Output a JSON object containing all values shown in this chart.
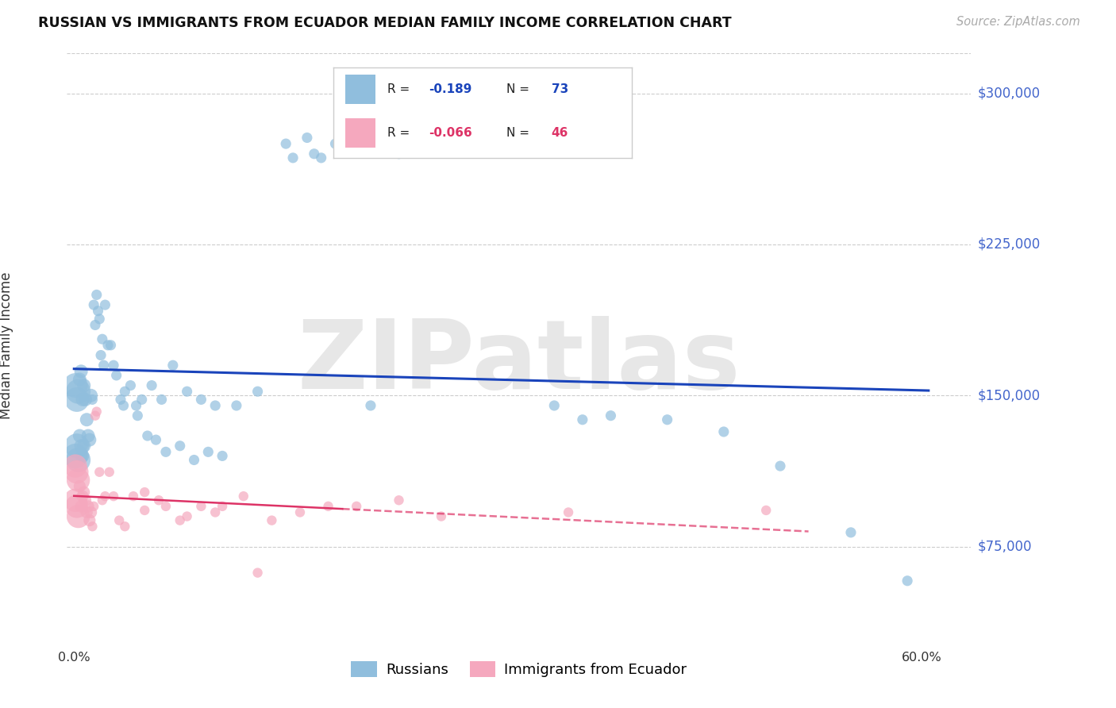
{
  "title": "RUSSIAN VS IMMIGRANTS FROM ECUADOR MEDIAN FAMILY INCOME CORRELATION CHART",
  "source": "Source: ZipAtlas.com",
  "ylabel": "Median Family Income",
  "yticks": [
    75000,
    150000,
    225000,
    300000
  ],
  "ytick_labels": [
    "$75,000",
    "$150,000",
    "$225,000",
    "$300,000"
  ],
  "ylim": [
    30000,
    320000
  ],
  "xlim_min": -0.005,
  "xlim_max": 0.635,
  "blue_R": "-0.189",
  "blue_N": "73",
  "pink_R": "-0.066",
  "pink_N": "46",
  "blue_color": "#90bedd",
  "pink_color": "#f5a8be",
  "blue_line_color": "#1a44bb",
  "pink_line_color": "#dd3366",
  "watermark": "ZIPatlas",
  "watermark_color": "#d8d8d8",
  "background_color": "#ffffff",
  "grid_color": "#cccccc",
  "tick_label_color": "#4466cc",
  "title_color": "#111111",
  "source_color": "#aaaaaa",
  "blue_scatter_x": [
    0.001,
    0.001,
    0.002,
    0.002,
    0.003,
    0.003,
    0.004,
    0.004,
    0.005,
    0.005,
    0.006,
    0.006,
    0.007,
    0.007,
    0.008,
    0.009,
    0.01,
    0.011,
    0.012,
    0.013,
    0.014,
    0.015,
    0.016,
    0.017,
    0.018,
    0.019,
    0.02,
    0.021,
    0.022,
    0.024,
    0.026,
    0.028,
    0.03,
    0.033,
    0.036,
    0.04,
    0.044,
    0.048,
    0.055,
    0.062,
    0.07,
    0.08,
    0.09,
    0.1,
    0.115,
    0.13,
    0.15,
    0.17,
    0.19,
    0.21,
    0.155,
    0.165,
    0.175,
    0.185,
    0.34,
    0.36,
    0.38,
    0.42,
    0.46,
    0.5,
    0.21,
    0.23,
    0.065,
    0.075,
    0.085,
    0.095,
    0.105,
    0.55,
    0.59,
    0.035,
    0.045,
    0.052,
    0.058
  ],
  "blue_scatter_y": [
    155000,
    120000,
    148000,
    125000,
    152000,
    118000,
    158000,
    130000,
    162000,
    125000,
    148000,
    120000,
    155000,
    125000,
    148000,
    138000,
    130000,
    128000,
    150000,
    148000,
    195000,
    185000,
    200000,
    192000,
    188000,
    170000,
    178000,
    165000,
    195000,
    175000,
    175000,
    165000,
    160000,
    148000,
    152000,
    155000,
    145000,
    148000,
    155000,
    148000,
    165000,
    152000,
    148000,
    145000,
    145000,
    152000,
    275000,
    270000,
    280000,
    275000,
    268000,
    278000,
    268000,
    275000,
    145000,
    138000,
    140000,
    138000,
    132000,
    115000,
    145000,
    270000,
    122000,
    125000,
    118000,
    122000,
    120000,
    82000,
    58000,
    145000,
    140000,
    130000,
    128000
  ],
  "pink_scatter_x": [
    0.001,
    0.001,
    0.002,
    0.002,
    0.003,
    0.003,
    0.004,
    0.005,
    0.006,
    0.007,
    0.008,
    0.009,
    0.01,
    0.011,
    0.012,
    0.013,
    0.014,
    0.015,
    0.016,
    0.018,
    0.02,
    0.022,
    0.025,
    0.028,
    0.032,
    0.036,
    0.042,
    0.05,
    0.06,
    0.075,
    0.09,
    0.105,
    0.12,
    0.14,
    0.16,
    0.18,
    0.05,
    0.065,
    0.08,
    0.1,
    0.2,
    0.23,
    0.26,
    0.13,
    0.35,
    0.49
  ],
  "pink_scatter_y": [
    115000,
    98000,
    112000,
    95000,
    108000,
    90000,
    105000,
    95000,
    100000,
    102000,
    98000,
    92000,
    95000,
    88000,
    92000,
    85000,
    95000,
    140000,
    142000,
    112000,
    98000,
    100000,
    112000,
    100000,
    88000,
    85000,
    100000,
    102000,
    98000,
    88000,
    95000,
    95000,
    100000,
    88000,
    92000,
    95000,
    93000,
    95000,
    90000,
    92000,
    95000,
    98000,
    90000,
    62000,
    92000,
    93000
  ],
  "blue_size_large": 500,
  "blue_size_med": 150,
  "blue_size_small": 90,
  "pink_size_large": 450,
  "pink_size_med": 120,
  "pink_size_small": 80
}
